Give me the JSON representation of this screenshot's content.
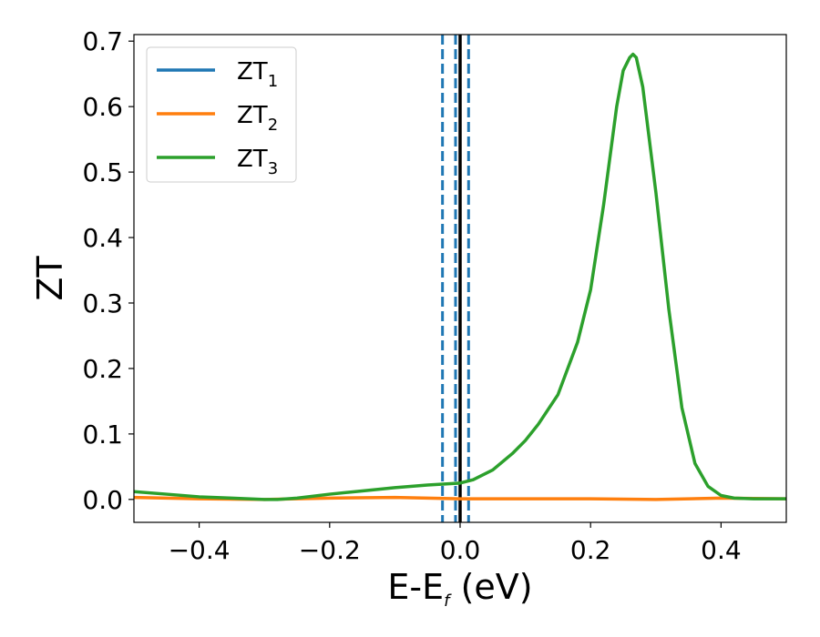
{
  "chart_data": {
    "type": "line",
    "xlabel_main": "E-E",
    "xlabel_sub": "f",
    "xlabel_unit": " (eV)",
    "ylabel": "ZT",
    "xlim": [
      -0.5,
      0.5
    ],
    "ylim": [
      -0.035,
      0.71
    ],
    "x_ticks": [
      -0.4,
      -0.2,
      0.0,
      0.2,
      0.4
    ],
    "x_tick_labels": [
      "−0.4",
      "−0.2",
      "0.0",
      "0.2",
      "0.4"
    ],
    "y_ticks": [
      0.0,
      0.1,
      0.2,
      0.3,
      0.4,
      0.5,
      0.6,
      0.7
    ],
    "y_tick_labels": [
      "0.0",
      "0.1",
      "0.2",
      "0.3",
      "0.4",
      "0.5",
      "0.6",
      "0.7"
    ],
    "legend_position": "top-left",
    "vertical_lines": [
      {
        "x": -0.027,
        "style": "dashed",
        "color": "#1f77b4"
      },
      {
        "x": -0.007,
        "style": "dashed",
        "color": "#1f77b4"
      },
      {
        "x": 0.013,
        "style": "dashed",
        "color": "#1f77b4"
      },
      {
        "x": 0.0,
        "style": "solid",
        "color": "#000000"
      }
    ],
    "series": [
      {
        "name_main": "ZT",
        "name_sub": "1",
        "color": "#1f77b4",
        "x": [],
        "y": []
      },
      {
        "name_main": "ZT",
        "name_sub": "2",
        "color": "#ff7f0e",
        "x": [
          -0.5,
          -0.4,
          -0.3,
          -0.2,
          -0.1,
          -0.05,
          0.0,
          0.1,
          0.2,
          0.3,
          0.4,
          0.5
        ],
        "y": [
          0.003,
          0.001,
          0.0,
          0.002,
          0.003,
          0.002,
          0.001,
          0.001,
          0.001,
          0.0,
          0.002,
          0.001
        ]
      },
      {
        "name_main": "ZT",
        "name_sub": "3",
        "color": "#2ca02c",
        "x": [
          -0.5,
          -0.45,
          -0.4,
          -0.35,
          -0.3,
          -0.28,
          -0.25,
          -0.2,
          -0.15,
          -0.1,
          -0.05,
          0.0,
          0.02,
          0.05,
          0.08,
          0.1,
          0.12,
          0.15,
          0.18,
          0.2,
          0.22,
          0.24,
          0.25,
          0.26,
          0.265,
          0.27,
          0.28,
          0.3,
          0.32,
          0.34,
          0.36,
          0.38,
          0.4,
          0.42,
          0.45,
          0.5
        ],
        "y": [
          0.012,
          0.008,
          0.004,
          0.002,
          0.0,
          0.0,
          0.002,
          0.008,
          0.013,
          0.018,
          0.022,
          0.025,
          0.03,
          0.045,
          0.07,
          0.09,
          0.115,
          0.16,
          0.24,
          0.32,
          0.45,
          0.6,
          0.655,
          0.675,
          0.68,
          0.675,
          0.63,
          0.47,
          0.29,
          0.14,
          0.055,
          0.02,
          0.006,
          0.002,
          0.001,
          0.001
        ]
      }
    ]
  }
}
